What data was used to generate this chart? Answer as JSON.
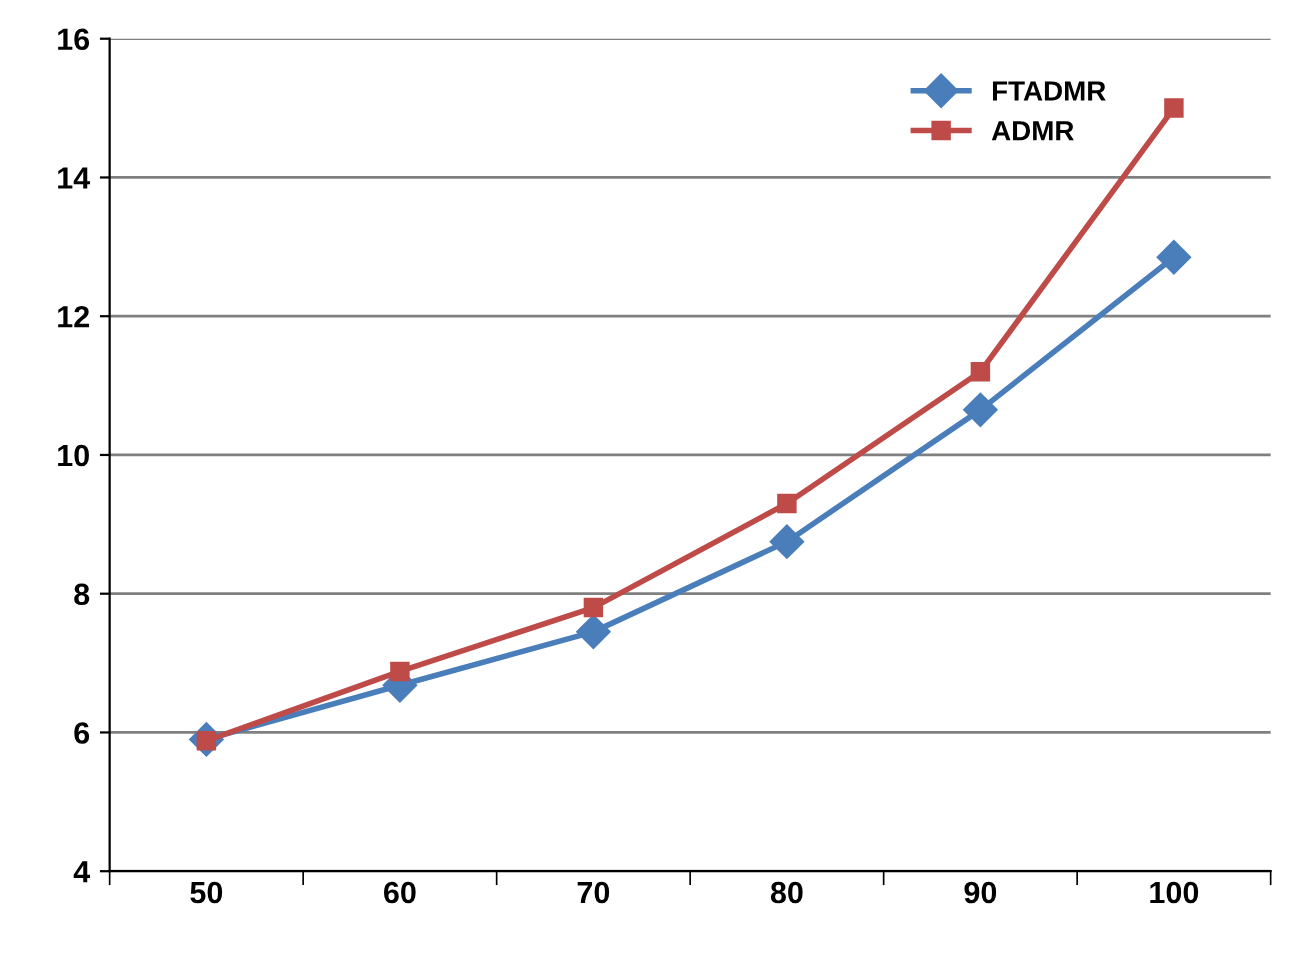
{
  "chart_data": {
    "type": "line",
    "categories": [
      "50",
      "60",
      "70",
      "80",
      "90",
      "100"
    ],
    "series": [
      {
        "name": "FTADMR",
        "color": "#4a7ebb",
        "marker": "diamond",
        "values": [
          5.9,
          6.68,
          7.45,
          8.75,
          10.65,
          12.85
        ]
      },
      {
        "name": "ADMR",
        "color": "#be4b48",
        "marker": "square",
        "values": [
          5.88,
          6.88,
          7.8,
          9.3,
          11.2,
          15.0
        ]
      }
    ],
    "ylim": [
      4,
      16
    ],
    "yticks": [
      4,
      6,
      8,
      10,
      12,
      14,
      16
    ],
    "grid": "y",
    "legend": "top right",
    "line_style": "solid"
  }
}
